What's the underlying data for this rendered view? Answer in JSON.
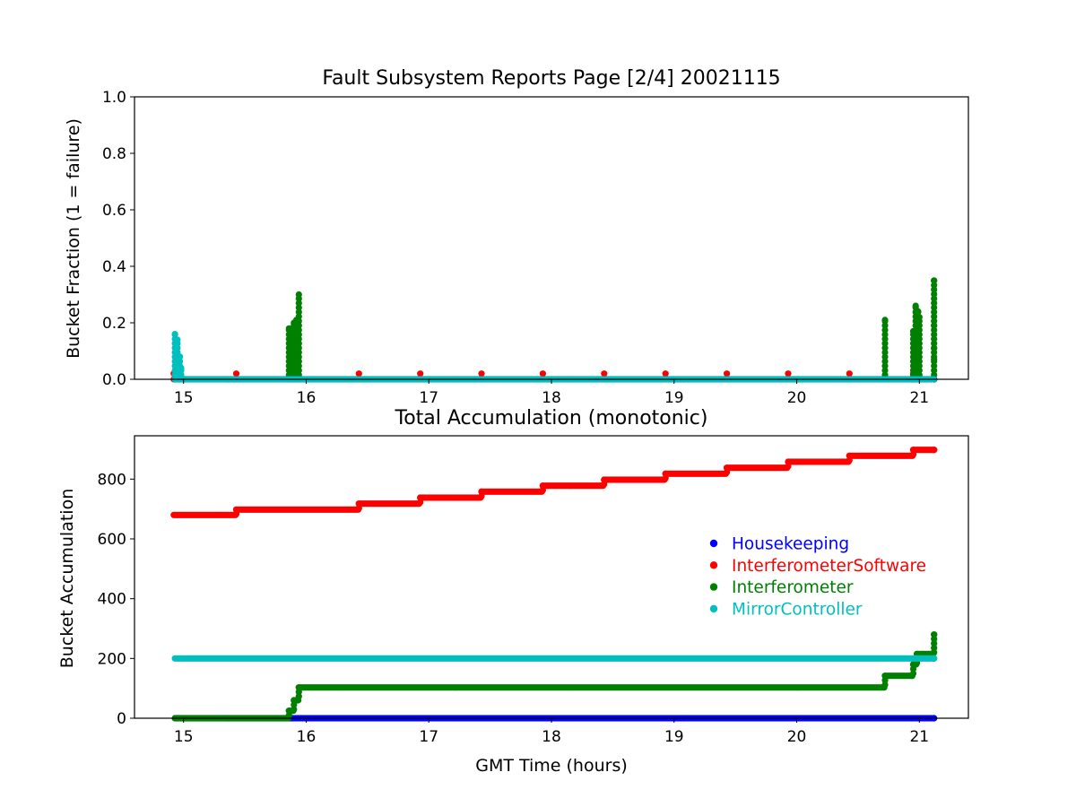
{
  "chart_data": [
    {
      "type": "scatter",
      "title": "Fault Subsystem Reports Page [2/4] 20021115",
      "xlabel": "",
      "ylabel": "Bucket Fraction (1 = failure)",
      "xlim": [
        14.6,
        21.4
      ],
      "ylim": [
        0,
        1
      ],
      "xticks": [
        "15",
        "16",
        "17",
        "18",
        "19",
        "20",
        "21"
      ],
      "yticks": [
        "0.0",
        "0.2",
        "0.4",
        "0.6",
        "0.8",
        "1.0"
      ],
      "grid": false,
      "series": [
        {
          "name": "Housekeeping",
          "color": "#0000ff",
          "points": [
            [
              14.93,
              0
            ],
            [
              21.12,
              0
            ]
          ]
        },
        {
          "name": "InterferometerSoftware",
          "color": "#ff0000",
          "points": [
            [
              14.92,
              0.02
            ],
            [
              15.43,
              0.02
            ],
            [
              16.43,
              0.02
            ],
            [
              16.93,
              0.02
            ],
            [
              17.43,
              0.02
            ],
            [
              17.93,
              0.02
            ],
            [
              18.43,
              0.02
            ],
            [
              18.93,
              0.02
            ],
            [
              19.43,
              0.02
            ],
            [
              19.93,
              0.02
            ],
            [
              20.43,
              0.02
            ],
            [
              20.95,
              0.02
            ]
          ]
        },
        {
          "name": "Interferometer",
          "color": "#008000",
          "points": [
            [
              15.86,
              0.18
            ],
            [
              15.88,
              0.15
            ],
            [
              15.9,
              0.2
            ],
            [
              15.92,
              0.21
            ],
            [
              15.94,
              0.3
            ],
            [
              20.72,
              0.21
            ],
            [
              20.95,
              0.17
            ],
            [
              20.97,
              0.26
            ],
            [
              20.99,
              0.24
            ],
            [
              21.0,
              0.22
            ],
            [
              21.12,
              0.35
            ],
            [
              21.12,
              0.19
            ],
            [
              21.12,
              0.11
            ],
            [
              21.12,
              0.07
            ]
          ]
        },
        {
          "name": "MirrorController",
          "color": "#00bfbf",
          "points": [
            [
              14.93,
              0.16
            ],
            [
              14.95,
              0.14
            ],
            [
              14.97,
              0.08
            ],
            [
              14.98,
              0.04
            ]
          ]
        }
      ]
    },
    {
      "type": "scatter",
      "title": "Total Accumulation (monotonic)",
      "xlabel": "GMT Time (hours)",
      "ylabel": "Bucket Accumulation",
      "xlim": [
        14.6,
        21.4
      ],
      "ylim": [
        0,
        945
      ],
      "xticks": [
        "15",
        "16",
        "17",
        "18",
        "19",
        "20",
        "21"
      ],
      "yticks": [
        "0",
        "200",
        "400",
        "600",
        "800"
      ],
      "grid": false,
      "legend": {
        "position": "center-right",
        "entries": [
          "Housekeeping",
          "InterferometerSoftware",
          "Interferometer",
          "MirrorController"
        ]
      },
      "series": [
        {
          "name": "Housekeeping",
          "color": "#0000ff",
          "steps": [
            [
              14.93,
              0
            ],
            [
              21.12,
              0
            ]
          ]
        },
        {
          "name": "InterferometerSoftware",
          "color": "#ff0000",
          "steps": [
            [
              14.92,
              680
            ],
            [
              15.43,
              698
            ],
            [
              16.43,
              718
            ],
            [
              16.93,
              738
            ],
            [
              17.43,
              758
            ],
            [
              17.93,
              778
            ],
            [
              18.43,
              798
            ],
            [
              18.93,
              818
            ],
            [
              19.43,
              838
            ],
            [
              19.93,
              858
            ],
            [
              20.43,
              878
            ],
            [
              20.95,
              898
            ],
            [
              21.12,
              898
            ]
          ]
        },
        {
          "name": "Interferometer",
          "color": "#008000",
          "steps": [
            [
              14.93,
              0
            ],
            [
              15.86,
              25
            ],
            [
              15.9,
              60
            ],
            [
              15.94,
              103
            ],
            [
              20.72,
              142
            ],
            [
              20.95,
              180
            ],
            [
              20.98,
              215
            ],
            [
              21.1,
              215
            ],
            [
              21.12,
              280
            ]
          ]
        },
        {
          "name": "MirrorController",
          "color": "#00bfbf",
          "steps": [
            [
              14.93,
              200
            ],
            [
              21.12,
              200
            ]
          ]
        }
      ]
    }
  ]
}
